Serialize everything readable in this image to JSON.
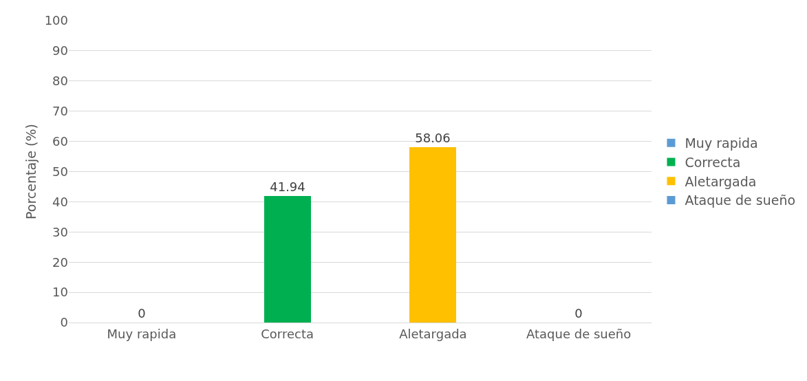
{
  "chart_data": {
    "type": "bar",
    "ylabel": "Porcentaje (%)",
    "categories": [
      "Muy rapida",
      "Correcta",
      "Aletargada",
      "Ataque de sueño"
    ],
    "series": [
      {
        "name": "Muy rapida",
        "color": "#5b9bd5",
        "values": [
          0,
          null,
          null,
          null
        ]
      },
      {
        "name": "Correcta",
        "color": "#00b050",
        "values": [
          null,
          41.94,
          null,
          null
        ]
      },
      {
        "name": "Aletargada",
        "color": "#ffc000",
        "values": [
          null,
          null,
          58.06,
          null
        ]
      },
      {
        "name": "Ataque de sueño",
        "color": "#5b9bd5",
        "values": [
          null,
          null,
          null,
          0
        ]
      }
    ],
    "ylim": [
      0,
      100
    ],
    "yticks": [
      0,
      10,
      20,
      30,
      40,
      50,
      60,
      70,
      80,
      90,
      100
    ],
    "grid": "y",
    "legend": "right",
    "data_labels": true
  }
}
